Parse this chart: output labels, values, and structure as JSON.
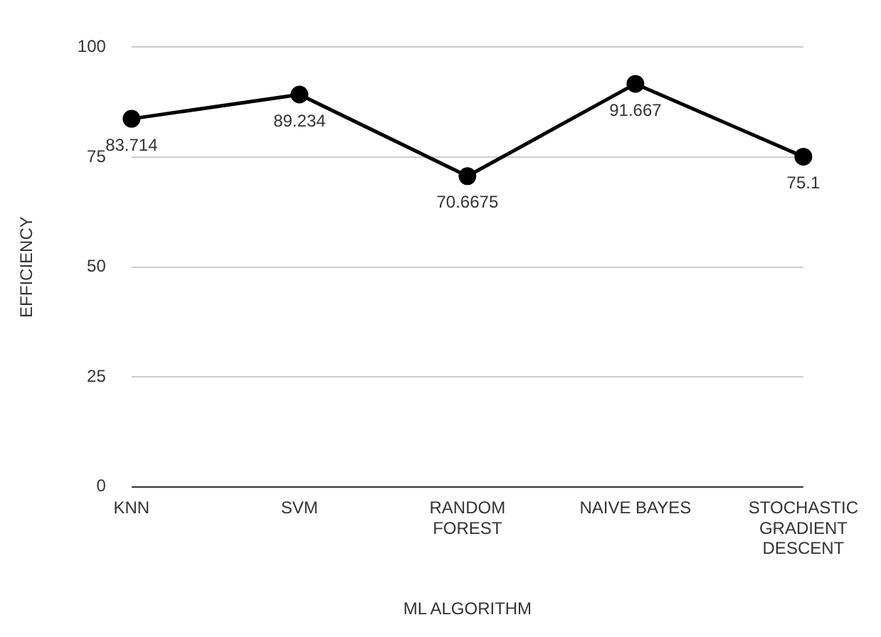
{
  "chart_data": {
    "type": "line",
    "xlabel": "ML ALGORITHM",
    "ylabel": "EFFICIENCY",
    "categories": [
      "KNN",
      "SVM",
      "RANDOM FOREST",
      "NAIVE BAYES",
      "STOCHASTIC GRADIENT DESCENT"
    ],
    "series": [
      {
        "color": "#000000",
        "values": [
          83.714,
          89.234,
          70.6675,
          91.667,
          75.1
        ]
      }
    ],
    "ylim": [
      0,
      100
    ],
    "yticks": [
      0,
      25,
      50,
      75,
      100
    ],
    "grid": "y",
    "legend": false,
    "marker": "circle",
    "line_style": "solid",
    "data_labels": true
  }
}
